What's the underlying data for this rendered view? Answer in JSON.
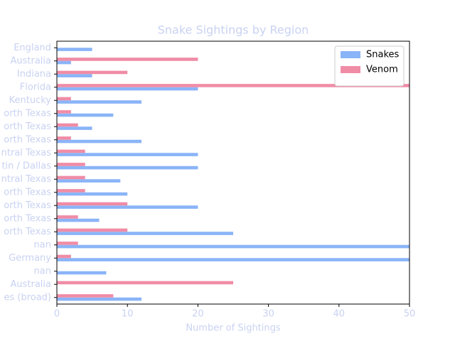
{
  "chart_data": {
    "type": "barh",
    "title": "Snake Sightings by Region",
    "x_label": "Number of Sightings",
    "categories": [
      "England",
      "Australia",
      "Indiana",
      "Florida",
      "Kentucky",
      "orth Texas",
      "orth Texas",
      "orth Texas",
      "ntral Texas",
      "tin / Dallas",
      "ntral Texas",
      "orth Texas",
      "orth Texas",
      "orth Texas",
      "orth Texas",
      "nan",
      "Germany",
      "nan",
      "Australia",
      "es (broad)"
    ],
    "series": [
      {
        "name": "Snakes",
        "color": "#8ab4f8",
        "values": [
          5,
          2,
          5,
          20,
          12,
          8,
          5,
          12,
          20,
          20,
          9,
          10,
          20,
          6,
          25,
          50,
          50,
          7,
          0,
          12
        ]
      },
      {
        "name": "Venom",
        "color": "#f08ca6",
        "values": [
          0,
          20,
          10,
          50,
          2,
          2,
          3,
          2,
          4,
          4,
          4,
          4,
          10,
          3,
          10,
          3,
          2,
          0,
          25,
          8
        ]
      }
    ],
    "xlim": [
      0,
      50
    ],
    "xticks": [
      0,
      10,
      20,
      30,
      40,
      50
    ],
    "legend": "upper right"
  }
}
